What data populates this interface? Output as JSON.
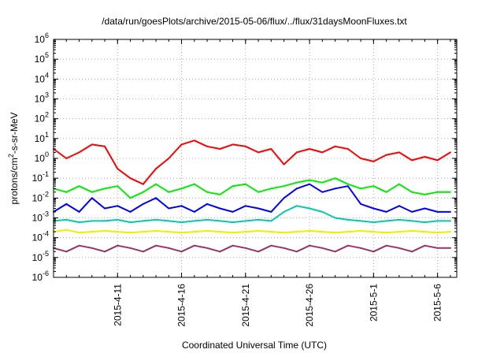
{
  "chart_data": {
    "type": "line",
    "title": "/data/run/goesPlots/archive/2015-05-06/flux/../flux/31daysMoonFluxes.txt",
    "xlabel": "Coordinated Universal Time (UTC)",
    "ylabel": "protons/cm2-s-sr-MeV",
    "ylabel_main": "protons/cm",
    "ylabel_sup": "2",
    "ylabel_rest": "-s-sr-MeV",
    "yscale": "log",
    "ylim_exponents": [
      -6,
      6
    ],
    "y_tick_base": "10",
    "y_tick_exponents": [
      "-6",
      "-5",
      "-4",
      "-3",
      "-2",
      "-1",
      "0",
      "1",
      "2",
      "3",
      "4",
      "5",
      "6"
    ],
    "x_range": [
      "2015-04-06",
      "2015-05-07 12:00"
    ],
    "x_tick_labels": [
      "2015-4-11",
      "2015-4-16",
      "2015-4-21",
      "2015-4-26",
      "2015-5-1",
      "2015-5-6"
    ],
    "x_tick_dates": [
      "2015-04-11",
      "2015-04-16",
      "2015-04-21",
      "2015-04-26",
      "2015-05-01",
      "2015-05-06"
    ],
    "grid": true,
    "grid_style": "dotted",
    "legend": "none",
    "series": [
      {
        "color": "#ff0000",
        "x": [
          "2015-04-06",
          "2015-04-07",
          "2015-04-08",
          "2015-04-09",
          "2015-04-10",
          "2015-04-11",
          "2015-04-12",
          "2015-04-13",
          "2015-04-14",
          "2015-04-15",
          "2015-04-16",
          "2015-04-17",
          "2015-04-18",
          "2015-04-19",
          "2015-04-20",
          "2015-04-21",
          "2015-04-22",
          "2015-04-23",
          "2015-04-24",
          "2015-04-25",
          "2015-04-26",
          "2015-04-27",
          "2015-04-28",
          "2015-04-29",
          "2015-04-30",
          "2015-05-01",
          "2015-05-02",
          "2015-05-03",
          "2015-05-04",
          "2015-05-05",
          "2015-05-06",
          "2015-05-07"
        ],
        "values": [
          3,
          1,
          2,
          5,
          4,
          0.3,
          0.1,
          0.05,
          0.3,
          1,
          5,
          8,
          4,
          3,
          5,
          4,
          2,
          3,
          0.5,
          2,
          3,
          2,
          4,
          3,
          1,
          0.7,
          1.5,
          2,
          0.8,
          1.2,
          0.8,
          2
        ]
      },
      {
        "color": "#00ee00",
        "x": [
          "2015-04-06",
          "2015-04-07",
          "2015-04-08",
          "2015-04-09",
          "2015-04-10",
          "2015-04-11",
          "2015-04-12",
          "2015-04-13",
          "2015-04-14",
          "2015-04-15",
          "2015-04-16",
          "2015-04-17",
          "2015-04-18",
          "2015-04-19",
          "2015-04-20",
          "2015-04-21",
          "2015-04-22",
          "2015-04-23",
          "2015-04-24",
          "2015-04-25",
          "2015-04-26",
          "2015-04-27",
          "2015-04-28",
          "2015-04-29",
          "2015-04-30",
          "2015-05-01",
          "2015-05-02",
          "2015-05-03",
          "2015-05-04",
          "2015-05-05",
          "2015-05-06",
          "2015-05-07"
        ],
        "values": [
          0.03,
          0.02,
          0.04,
          0.02,
          0.03,
          0.04,
          0.01,
          0.02,
          0.05,
          0.02,
          0.03,
          0.05,
          0.02,
          0.015,
          0.04,
          0.05,
          0.02,
          0.03,
          0.04,
          0.06,
          0.08,
          0.06,
          0.1,
          0.05,
          0.03,
          0.04,
          0.02,
          0.05,
          0.02,
          0.015,
          0.02,
          0.02
        ]
      },
      {
        "color": "#0000ff",
        "x": [
          "2015-04-06",
          "2015-04-07",
          "2015-04-08",
          "2015-04-09",
          "2015-04-10",
          "2015-04-11",
          "2015-04-12",
          "2015-04-13",
          "2015-04-14",
          "2015-04-15",
          "2015-04-16",
          "2015-04-17",
          "2015-04-18",
          "2015-04-19",
          "2015-04-20",
          "2015-04-21",
          "2015-04-22",
          "2015-04-23",
          "2015-04-24",
          "2015-04-25",
          "2015-04-26",
          "2015-04-27",
          "2015-04-28",
          "2015-04-29",
          "2015-04-30",
          "2015-05-01",
          "2015-05-02",
          "2015-05-03",
          "2015-05-04",
          "2015-05-05",
          "2015-05-06",
          "2015-05-07"
        ],
        "values": [
          0.002,
          0.005,
          0.002,
          0.01,
          0.003,
          0.004,
          0.002,
          0.005,
          0.01,
          0.003,
          0.004,
          0.002,
          0.005,
          0.003,
          0.002,
          0.004,
          0.003,
          0.002,
          0.01,
          0.03,
          0.05,
          0.02,
          0.03,
          0.04,
          0.005,
          0.003,
          0.002,
          0.004,
          0.002,
          0.003,
          0.002,
          0.002
        ]
      },
      {
        "color": "#00ccaa",
        "x": [
          "2015-04-06",
          "2015-04-07",
          "2015-04-08",
          "2015-04-09",
          "2015-04-10",
          "2015-04-11",
          "2015-04-12",
          "2015-04-13",
          "2015-04-14",
          "2015-04-15",
          "2015-04-16",
          "2015-04-17",
          "2015-04-18",
          "2015-04-19",
          "2015-04-20",
          "2015-04-21",
          "2015-04-22",
          "2015-04-23",
          "2015-04-24",
          "2015-04-25",
          "2015-04-26",
          "2015-04-27",
          "2015-04-28",
          "2015-04-29",
          "2015-04-30",
          "2015-05-01",
          "2015-05-02",
          "2015-05-03",
          "2015-05-04",
          "2015-05-05",
          "2015-05-06",
          "2015-05-07"
        ],
        "values": [
          0.0007,
          0.0008,
          0.0006,
          0.0007,
          0.0007,
          0.0008,
          0.0006,
          0.0007,
          0.0008,
          0.0007,
          0.0006,
          0.0007,
          0.0008,
          0.0007,
          0.0006,
          0.0007,
          0.0008,
          0.0007,
          0.002,
          0.004,
          0.003,
          0.002,
          0.001,
          0.0008,
          0.0007,
          0.0006,
          0.0007,
          0.0008,
          0.0007,
          0.0006,
          0.0007,
          0.0007
        ]
      },
      {
        "color": "#eeee00",
        "x": [
          "2015-04-06",
          "2015-04-07",
          "2015-04-08",
          "2015-04-09",
          "2015-04-10",
          "2015-04-11",
          "2015-04-12",
          "2015-04-13",
          "2015-04-14",
          "2015-04-15",
          "2015-04-16",
          "2015-04-17",
          "2015-04-18",
          "2015-04-19",
          "2015-04-20",
          "2015-04-21",
          "2015-04-22",
          "2015-04-23",
          "2015-04-24",
          "2015-04-25",
          "2015-04-26",
          "2015-04-27",
          "2015-04-28",
          "2015-04-29",
          "2015-04-30",
          "2015-05-01",
          "2015-05-02",
          "2015-05-03",
          "2015-05-04",
          "2015-05-05",
          "2015-05-06",
          "2015-05-07"
        ],
        "values": [
          0.0002,
          0.00025,
          0.00018,
          0.0002,
          0.00022,
          0.0002,
          0.00018,
          0.0002,
          0.00022,
          0.0002,
          0.00018,
          0.0002,
          0.00022,
          0.0002,
          0.00018,
          0.0002,
          0.00022,
          0.0002,
          0.00018,
          0.0002,
          0.00022,
          0.0002,
          0.00018,
          0.0002,
          0.00022,
          0.0002,
          0.00018,
          0.0002,
          0.00022,
          0.0002,
          0.00018,
          0.0002
        ]
      },
      {
        "color": "#993366",
        "x": [
          "2015-04-06",
          "2015-04-07",
          "2015-04-08",
          "2015-04-09",
          "2015-04-10",
          "2015-04-11",
          "2015-04-12",
          "2015-04-13",
          "2015-04-14",
          "2015-04-15",
          "2015-04-16",
          "2015-04-17",
          "2015-04-18",
          "2015-04-19",
          "2015-04-20",
          "2015-04-21",
          "2015-04-22",
          "2015-04-23",
          "2015-04-24",
          "2015-04-25",
          "2015-04-26",
          "2015-04-27",
          "2015-04-28",
          "2015-04-29",
          "2015-04-30",
          "2015-05-01",
          "2015-05-02",
          "2015-05-03",
          "2015-05-04",
          "2015-05-05",
          "2015-05-06",
          "2015-05-07"
        ],
        "values": [
          3e-05,
          2e-05,
          4e-05,
          3e-05,
          2e-05,
          4e-05,
          3e-05,
          2e-05,
          4e-05,
          3e-05,
          2e-05,
          4e-05,
          3e-05,
          2e-05,
          4e-05,
          3e-05,
          2e-05,
          4e-05,
          3e-05,
          2e-05,
          4e-05,
          3e-05,
          2e-05,
          4e-05,
          3e-05,
          2e-05,
          4e-05,
          3e-05,
          2e-05,
          4e-05,
          3e-05,
          3e-05
        ]
      }
    ]
  }
}
